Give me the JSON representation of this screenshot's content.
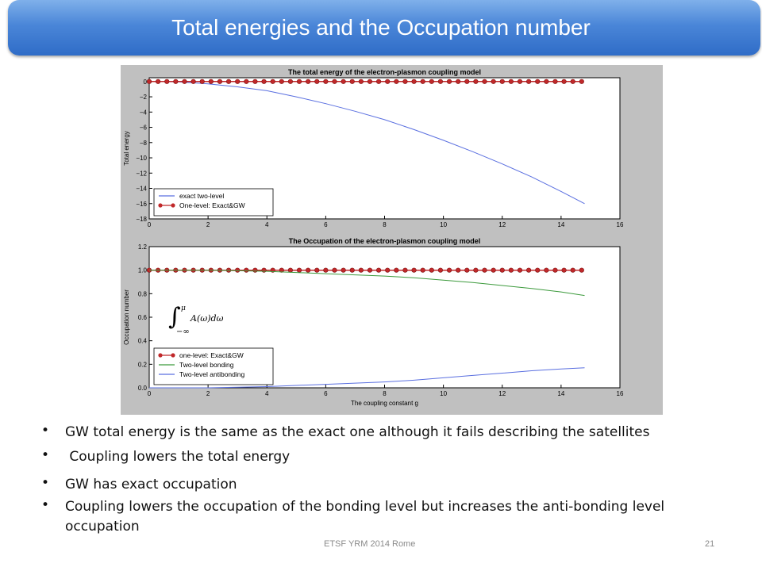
{
  "slide": {
    "title": "Total energies and the Occupation number",
    "footer_center": "ETSF YRM 2014 Rome",
    "page_number": "21"
  },
  "bullets": [
    "GW total energy is the same as the exact one although it fails describing the satellites",
    " Coupling lowers the total energy",
    "GW has exact occupation",
    "Coupling lowers the occupation of the bonding level but increases the anti-bonding level occupation"
  ],
  "colors": {
    "blue_series": "#5a6fe0",
    "green_series": "#3c9a3c",
    "red_series": "#c0282a",
    "figure_bg": "#c0c0c0"
  },
  "chart_data": [
    {
      "type": "line",
      "title": "The total energy of the electron-plasmon coupling model",
      "xlabel": "",
      "ylabel": "Total energy",
      "xlim": [
        0,
        16
      ],
      "ylim": [
        -18,
        0.5
      ],
      "xticks": [
        "0",
        "2",
        "4",
        "6",
        "8",
        "10",
        "12",
        "14",
        "16"
      ],
      "yticks": [
        "0",
        "−2",
        "−4",
        "−6",
        "−8",
        "−10",
        "−12",
        "−14",
        "−16",
        "−18"
      ],
      "legend_position": "bottom-left",
      "series": [
        {
          "name": "exact two-level",
          "style": "line",
          "x": [
            0,
            1,
            2,
            3,
            4,
            5,
            6,
            7,
            8,
            9,
            10,
            11,
            12,
            13,
            14,
            14.8
          ],
          "y": [
            0,
            -0.05,
            -0.3,
            -0.7,
            -1.2,
            -2.0,
            -2.9,
            -3.9,
            -5.0,
            -6.3,
            -7.7,
            -9.2,
            -10.8,
            -12.5,
            -14.4,
            -16.0
          ]
        },
        {
          "name": "One-level: Exact&GW",
          "style": "line-marker",
          "x": [
            0,
            0.3,
            0.6,
            0.9,
            1.2,
            1.5,
            1.8,
            2.1,
            2.4,
            2.7,
            3.0,
            3.3,
            3.6,
            3.9,
            4.2,
            4.5,
            4.8,
            5.1,
            5.4,
            5.7,
            6.0,
            6.3,
            6.6,
            6.9,
            7.2,
            7.5,
            7.8,
            8.1,
            8.4,
            8.7,
            9.0,
            9.3,
            9.6,
            9.9,
            10.2,
            10.5,
            10.8,
            11.1,
            11.4,
            11.7,
            12.0,
            12.3,
            12.6,
            12.9,
            13.2,
            13.5,
            13.8,
            14.1,
            14.4,
            14.7
          ],
          "y": [
            0,
            0,
            0,
            0,
            0,
            0,
            0,
            0,
            0,
            0,
            0,
            0,
            0,
            0,
            0,
            0,
            0,
            0,
            0,
            0,
            0,
            0,
            0,
            0,
            0,
            0,
            0,
            0,
            0,
            0,
            0,
            0,
            0,
            0,
            0,
            0,
            0,
            0,
            0,
            0,
            0,
            0,
            0,
            0,
            0,
            0,
            0,
            0,
            0,
            0
          ]
        }
      ]
    },
    {
      "type": "line",
      "title": "The Occupation of the electron-plasmon coupling model",
      "xlabel": "The coupling constant g",
      "ylabel": "Occupation number",
      "xlim": [
        0,
        16
      ],
      "ylim": [
        0,
        1.2
      ],
      "xticks": [
        "0",
        "2",
        "4",
        "6",
        "8",
        "10",
        "12",
        "14",
        "16"
      ],
      "yticks": [
        "0.0",
        "0.2",
        "0.4",
        "0.6",
        "0.8",
        "1.0",
        "1.2"
      ],
      "legend_position": "bottom-left",
      "annotation": {
        "integral_lower": "−∞",
        "integral_upper": "μ",
        "integrand": "A(ω)dω"
      },
      "series": [
        {
          "name": "one-level: Exact&GW",
          "style": "line-marker",
          "x": [
            0,
            0.3,
            0.6,
            0.9,
            1.2,
            1.5,
            1.8,
            2.1,
            2.4,
            2.7,
            3.0,
            3.3,
            3.6,
            3.9,
            4.2,
            4.5,
            4.8,
            5.1,
            5.4,
            5.7,
            6.0,
            6.3,
            6.6,
            6.9,
            7.2,
            7.5,
            7.8,
            8.1,
            8.4,
            8.7,
            9.0,
            9.3,
            9.6,
            9.9,
            10.2,
            10.5,
            10.8,
            11.1,
            11.4,
            11.7,
            12.0,
            12.3,
            12.6,
            12.9,
            13.2,
            13.5,
            13.8,
            14.1,
            14.4,
            14.7
          ],
          "y": [
            1,
            1,
            1,
            1,
            1,
            1,
            1,
            1,
            1,
            1,
            1,
            1,
            1,
            1,
            1,
            1,
            1,
            1,
            1,
            1,
            1,
            1,
            1,
            1,
            1,
            1,
            1,
            1,
            1,
            1,
            1,
            1,
            1,
            1,
            1,
            1,
            1,
            1,
            1,
            1,
            1,
            1,
            1,
            1,
            1,
            1,
            1,
            1,
            1,
            1
          ]
        },
        {
          "name": "Two-level bonding",
          "style": "line",
          "x": [
            0,
            1,
            2,
            3,
            4,
            5,
            6,
            7,
            8,
            9,
            10,
            11,
            12,
            13,
            14,
            14.8
          ],
          "y": [
            1.0,
            1.0,
            1.0,
            0.995,
            0.99,
            0.98,
            0.97,
            0.96,
            0.95,
            0.935,
            0.915,
            0.895,
            0.87,
            0.845,
            0.815,
            0.785
          ]
        },
        {
          "name": "Two-level antibonding",
          "style": "line",
          "x": [
            0,
            1,
            2,
            3,
            4,
            5,
            6,
            7,
            8,
            9,
            10,
            11,
            12,
            13,
            14,
            14.8
          ],
          "y": [
            0,
            0,
            0.0,
            0.005,
            0.01,
            0.02,
            0.03,
            0.04,
            0.05,
            0.065,
            0.085,
            0.105,
            0.125,
            0.145,
            0.16,
            0.17
          ]
        }
      ]
    }
  ]
}
